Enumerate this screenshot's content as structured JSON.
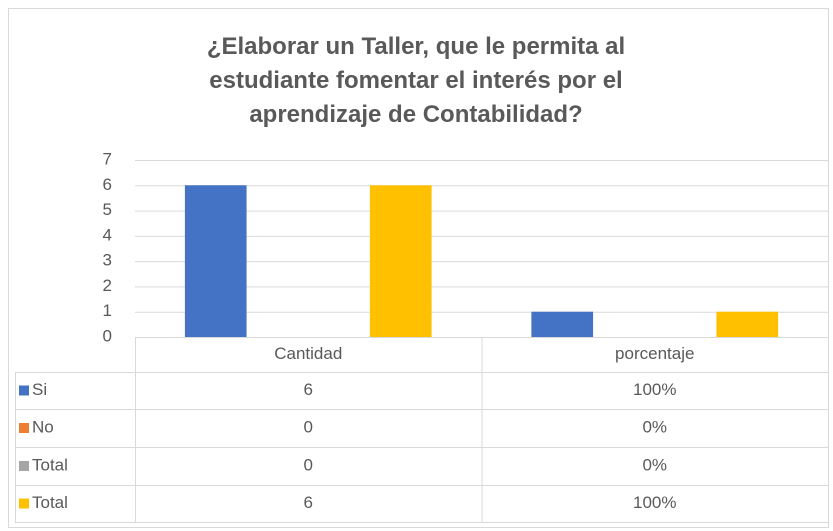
{
  "chart_data": {
    "type": "bar",
    "title": "¿Elaborar un Taller, que le permita al estudiante fomentar el interés por el aprendizaje de Contabilidad?",
    "categories": [
      "Cantidad",
      "porcentaje"
    ],
    "series": [
      {
        "name": "Si",
        "color": "#4472c4",
        "values": [
          6,
          1
        ],
        "value_labels": [
          "6",
          "100%"
        ]
      },
      {
        "name": "No",
        "color": "#ed7d31",
        "values": [
          0,
          0
        ],
        "value_labels": [
          "0",
          "0%"
        ]
      },
      {
        "name": "Total",
        "color": "#a5a5a5",
        "values": [
          0,
          0
        ],
        "value_labels": [
          "0",
          "0%"
        ]
      },
      {
        "name": "Total",
        "color": "#ffc000",
        "values": [
          6,
          1
        ],
        "value_labels": [
          "6",
          "100%"
        ]
      }
    ],
    "ylim": [
      0,
      7
    ],
    "yticks": [
      0,
      1,
      2,
      3,
      4,
      5,
      6,
      7
    ],
    "grid": true,
    "data_table": true
  }
}
